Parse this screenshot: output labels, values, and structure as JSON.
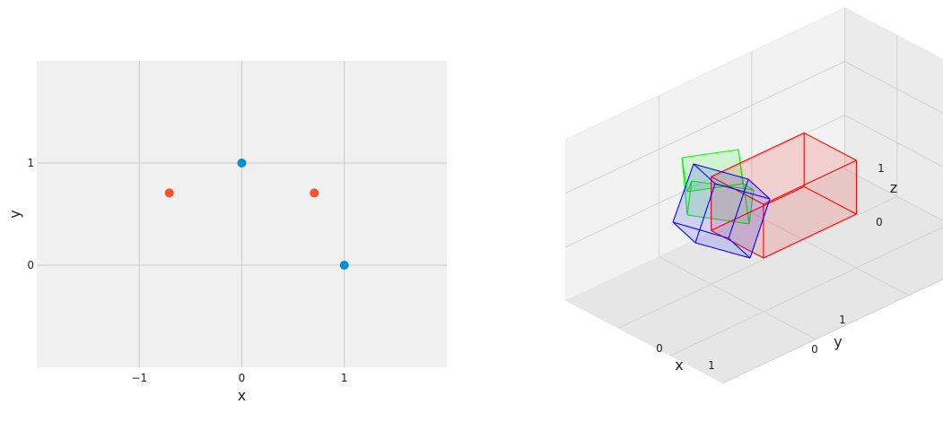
{
  "chart_data": [
    {
      "type": "scatter",
      "title": "",
      "xlabel": "x",
      "ylabel": "y",
      "xlim": [
        -2,
        2
      ],
      "ylim": [
        -1,
        2
      ],
      "xticks": [
        -1,
        0,
        1
      ],
      "xtick_labels": [
        "−1",
        "0",
        "1"
      ],
      "yticks": [
        0,
        1
      ],
      "ytick_labels": [
        "0",
        "1"
      ],
      "grid": true,
      "background": "#f0f0f0",
      "series": [
        {
          "color": "#008fd5",
          "points": [
            [
              0,
              1
            ],
            [
              1,
              0
            ]
          ]
        },
        {
          "color": "#fc4f30",
          "points": [
            [
              -0.707,
              0.707
            ],
            [
              0.707,
              0.707
            ]
          ]
        }
      ]
    },
    {
      "type": "3d-cubes",
      "title": "",
      "xlabel": "x",
      "ylabel": "y",
      "zlabel": "z",
      "xlim": [
        -1,
        2
      ],
      "ylim": [
        -1,
        2
      ],
      "zlim": [
        -1,
        2
      ],
      "xticks": [
        "0",
        "1"
      ],
      "yticks": [
        "0",
        "1"
      ],
      "zticks": [
        "0",
        "1"
      ],
      "grid": true,
      "pane_color": "#f2f2f2",
      "series": [
        {
          "color": "#ff0000",
          "shape": "unit cube"
        },
        {
          "color": "#00ff00",
          "shape": "unit cube, rotated"
        },
        {
          "color": "#0000ff",
          "shape": "unit cube, rotated"
        }
      ]
    }
  ]
}
